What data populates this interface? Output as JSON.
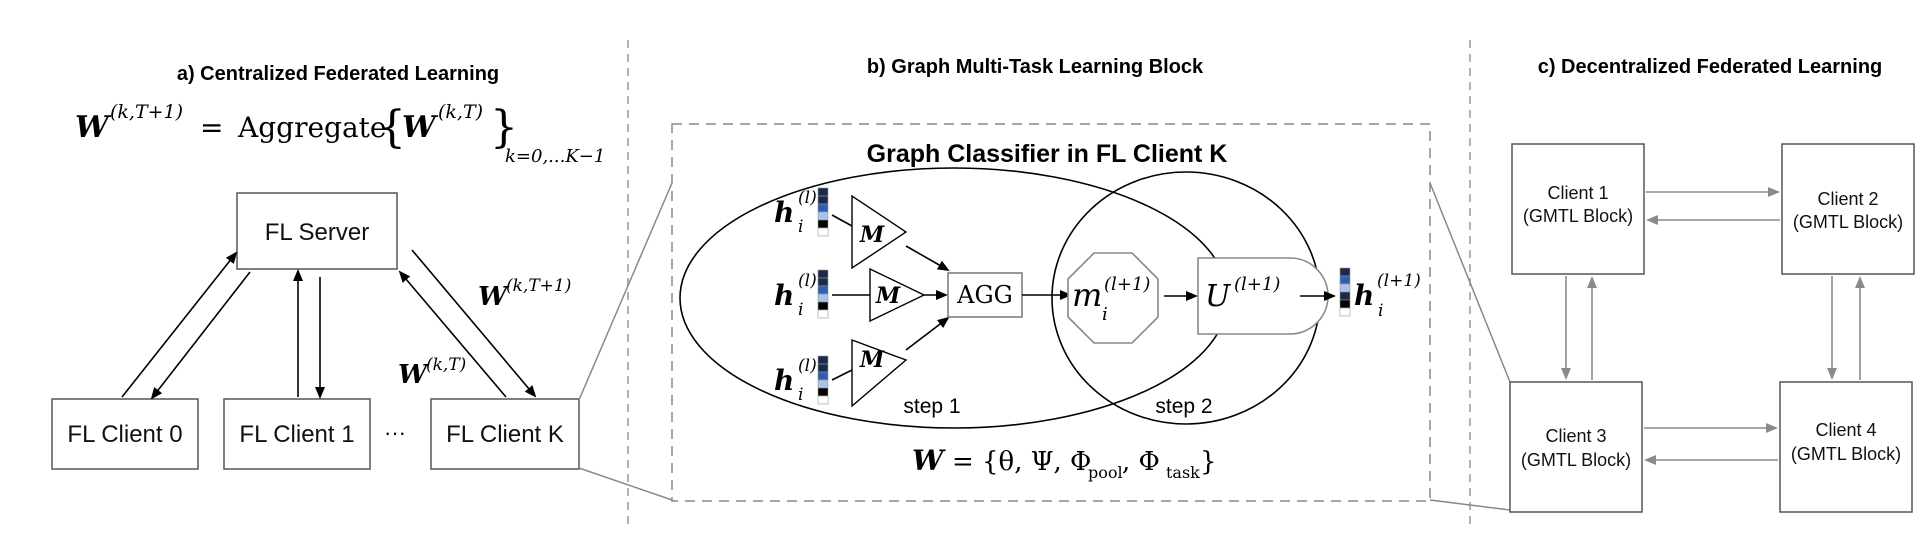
{
  "sections": {
    "a_title": "a) Centralized Federated Learning",
    "b_title": "b) Graph Multi-Task Learning Block",
    "c_title": "c) Decentralized Federated Learning"
  },
  "centralized": {
    "formula_lhs_w": "W",
    "formula_lhs_sup": "(k,T+1)",
    "formula_eq": "=",
    "formula_op": "Aggregate",
    "formula_brace_open": "{",
    "formula_rhs_w": "W",
    "formula_rhs_sup": "(k,T)",
    "formula_brace_close": "}",
    "formula_sub": "k=0,...K−1",
    "server": "FL Server",
    "clients": [
      "FL Client 0",
      "FL Client 1",
      "FL Client K"
    ],
    "ellipsis": "···",
    "down_w": "W",
    "down_sup": "(k,T+1)",
    "up_w": "W",
    "up_sup": "(k,T)"
  },
  "gmtl": {
    "box_title": "Graph Classifier in FL Client K",
    "h": "h",
    "h_sub": "i",
    "h_sup": "(l)",
    "m_label": "M",
    "agg": "AGG",
    "msg_m": "m",
    "msg_sub": "i",
    "msg_sup": "(l+1)",
    "update_u": "U",
    "update_sup": "(l+1)",
    "out_h": "h",
    "out_sub": "i",
    "out_sup": "(l+1)",
    "step1": "step 1",
    "step2": "step 2",
    "params_w": "W",
    "params_eq": "=",
    "params_set": "{θ, Ψ, Φ",
    "params_pool": "pool",
    "params_comma": ", Φ",
    "params_task": "task",
    "params_close": "}"
  },
  "decentralized": {
    "clients": [
      {
        "name": "Client 1",
        "block": "(GMTL Block)"
      },
      {
        "name": "Client 2",
        "block": "(GMTL Block)"
      },
      {
        "name": "Client 3",
        "block": "(GMTL Block)"
      },
      {
        "name": "Client 4",
        "block": "(GMTL Block)"
      }
    ]
  },
  "colors": {
    "vector_dark": "#1b2a4a",
    "vector_mid": "#2f5fb0",
    "vector_light": "#a9c2e6",
    "vector_black": "#000000",
    "vector_white": "#ffffff",
    "gray_arrow": "#8a8a8a"
  }
}
